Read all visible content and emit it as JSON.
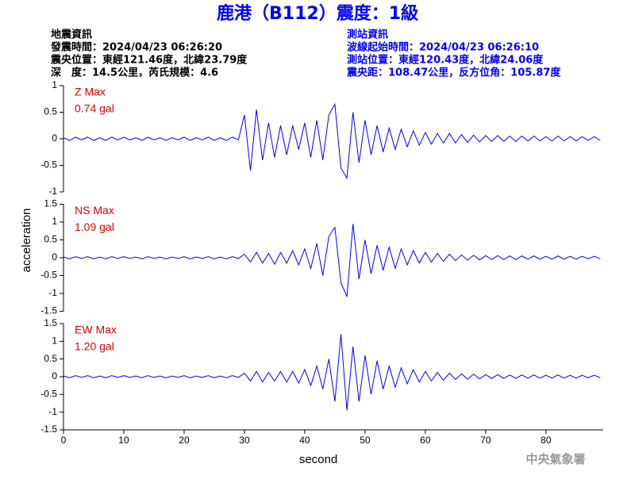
{
  "header": {
    "title": "鹿港（B112）震度：1級",
    "left": [
      "地震資訊",
      "發震時間：2024/04/23 06:26:20",
      "震央位置：東經121.46度，北緯23.79度",
      "深　度：14.5公里，芮氏規模：4.6"
    ],
    "right": [
      "測站資訊",
      "波線起始時間：2024/04/23 06:26:10",
      "測站位置：東經120.43度，北緯24.06度",
      "震央距：108.47公里，反方位角：105.87度"
    ]
  },
  "y_label": "acceleration",
  "x_label": "second",
  "footer": "中央氣象署",
  "chart_data": [
    {
      "type": "line",
      "annotations": [
        "Z Max",
        "0.74 gal"
      ],
      "x": [
        0,
        1,
        2,
        3,
        4,
        5,
        6,
        7,
        8,
        9,
        10,
        11,
        12,
        13,
        14,
        15,
        16,
        17,
        18,
        19,
        20,
        21,
        22,
        23,
        24,
        25,
        26,
        27,
        28,
        29,
        30,
        31,
        32,
        33,
        34,
        35,
        36,
        37,
        38,
        39,
        40,
        41,
        42,
        43,
        44,
        45,
        46,
        47,
        48,
        49,
        50,
        51,
        52,
        53,
        54,
        55,
        56,
        57,
        58,
        59,
        60,
        61,
        62,
        63,
        64,
        65,
        66,
        67,
        68,
        69,
        70,
        71,
        72,
        73,
        74,
        75,
        76,
        77,
        78,
        79,
        80,
        81,
        82,
        83,
        84,
        85,
        86,
        87,
        88,
        89
      ],
      "series": [
        {
          "color": "#0000ff",
          "values": [
            0.02,
            -0.03,
            0.03,
            -0.02,
            0.03,
            -0.03,
            0.02,
            -0.03,
            0.03,
            -0.02,
            0.03,
            -0.02,
            0.02,
            -0.03,
            0.03,
            -0.02,
            0.02,
            -0.03,
            0.02,
            -0.02,
            0.03,
            -0.03,
            0.02,
            -0.02,
            0.03,
            -0.03,
            0.02,
            -0.03,
            0.03,
            -0.02,
            0.45,
            -0.6,
            0.55,
            -0.4,
            0.3,
            -0.35,
            0.25,
            -0.3,
            0.25,
            -0.2,
            0.3,
            -0.35,
            0.35,
            -0.4,
            0.45,
            0.65,
            -0.55,
            -0.74,
            0.5,
            -0.45,
            0.35,
            -0.3,
            0.25,
            -0.25,
            0.2,
            -0.2,
            0.18,
            -0.15,
            0.15,
            -0.12,
            0.12,
            -0.1,
            0.1,
            -0.08,
            0.1,
            -0.08,
            0.08,
            -0.07,
            0.07,
            -0.06,
            0.06,
            -0.05,
            0.06,
            -0.05,
            0.05,
            -0.05,
            0.05,
            -0.04,
            0.05,
            -0.04,
            0.04,
            -0.04,
            0.05,
            -0.04,
            0.04,
            -0.04,
            0.04,
            -0.03,
            0.04,
            -0.03
          ]
        }
      ],
      "xlim": [
        0,
        89.5
      ],
      "ylim": [
        -1,
        1
      ],
      "yticks": [
        -1,
        -0.5,
        0,
        0.5,
        1
      ]
    },
    {
      "type": "line",
      "annotations": [
        "NS Max",
        "1.09 gal"
      ],
      "x": [
        0,
        1,
        2,
        3,
        4,
        5,
        6,
        7,
        8,
        9,
        10,
        11,
        12,
        13,
        14,
        15,
        16,
        17,
        18,
        19,
        20,
        21,
        22,
        23,
        24,
        25,
        26,
        27,
        28,
        29,
        30,
        31,
        32,
        33,
        34,
        35,
        36,
        37,
        38,
        39,
        40,
        41,
        42,
        43,
        44,
        45,
        46,
        47,
        48,
        49,
        50,
        51,
        52,
        53,
        54,
        55,
        56,
        57,
        58,
        59,
        60,
        61,
        62,
        63,
        64,
        65,
        66,
        67,
        68,
        69,
        70,
        71,
        72,
        73,
        74,
        75,
        76,
        77,
        78,
        79,
        80,
        81,
        82,
        83,
        84,
        85,
        86,
        87,
        88,
        89
      ],
      "series": [
        {
          "color": "#0000ff",
          "values": [
            0.02,
            -0.03,
            0.03,
            -0.02,
            0.03,
            -0.03,
            0.02,
            -0.03,
            0.03,
            -0.02,
            0.03,
            -0.02,
            0.02,
            -0.03,
            0.03,
            -0.02,
            0.02,
            -0.03,
            0.02,
            -0.02,
            0.03,
            -0.03,
            0.02,
            -0.02,
            0.03,
            -0.03,
            0.02,
            -0.03,
            0.03,
            -0.02,
            0.1,
            -0.12,
            0.15,
            -0.15,
            0.12,
            -0.18,
            0.15,
            -0.15,
            0.2,
            -0.2,
            0.25,
            -0.3,
            0.4,
            -0.5,
            0.6,
            0.85,
            -0.7,
            -1.09,
            0.95,
            -0.6,
            0.5,
            -0.45,
            0.35,
            -0.35,
            0.3,
            -0.3,
            0.25,
            -0.2,
            0.2,
            -0.15,
            0.15,
            -0.12,
            0.12,
            -0.1,
            0.1,
            -0.08,
            0.08,
            -0.07,
            0.07,
            -0.06,
            0.06,
            -0.05,
            0.06,
            -0.05,
            0.05,
            -0.05,
            0.05,
            -0.04,
            0.05,
            -0.04,
            0.04,
            -0.04,
            0.05,
            -0.04,
            0.04,
            -0.04,
            0.04,
            -0.03,
            0.04,
            -0.03
          ]
        }
      ],
      "xlim": [
        0,
        89.5
      ],
      "ylim": [
        -1.5,
        1.5
      ],
      "yticks": [
        -1.5,
        -1,
        -0.5,
        0,
        0.5,
        1,
        1.5
      ]
    },
    {
      "type": "line",
      "annotations": [
        "EW Max",
        "1.20 gal"
      ],
      "x": [
        0,
        1,
        2,
        3,
        4,
        5,
        6,
        7,
        8,
        9,
        10,
        11,
        12,
        13,
        14,
        15,
        16,
        17,
        18,
        19,
        20,
        21,
        22,
        23,
        24,
        25,
        26,
        27,
        28,
        29,
        30,
        31,
        32,
        33,
        34,
        35,
        36,
        37,
        38,
        39,
        40,
        41,
        42,
        43,
        44,
        45,
        46,
        47,
        48,
        49,
        50,
        51,
        52,
        53,
        54,
        55,
        56,
        57,
        58,
        59,
        60,
        61,
        62,
        63,
        64,
        65,
        66,
        67,
        68,
        69,
        70,
        71,
        72,
        73,
        74,
        75,
        76,
        77,
        78,
        79,
        80,
        81,
        82,
        83,
        84,
        85,
        86,
        87,
        88,
        89
      ],
      "series": [
        {
          "color": "#0000ff",
          "values": [
            0.02,
            -0.03,
            0.03,
            -0.02,
            0.03,
            -0.03,
            0.02,
            -0.03,
            0.03,
            -0.02,
            0.03,
            -0.02,
            0.02,
            -0.03,
            0.03,
            -0.02,
            0.02,
            -0.03,
            0.02,
            -0.02,
            0.03,
            -0.03,
            0.02,
            -0.02,
            0.03,
            -0.03,
            0.02,
            -0.03,
            0.03,
            -0.02,
            0.1,
            -0.12,
            0.15,
            -0.15,
            0.12,
            -0.12,
            0.15,
            -0.15,
            0.15,
            -0.18,
            0.2,
            -0.25,
            0.3,
            -0.35,
            0.5,
            -0.7,
            1.2,
            -0.95,
            0.85,
            -0.7,
            0.6,
            -0.5,
            0.45,
            -0.35,
            0.3,
            -0.3,
            0.25,
            -0.2,
            0.2,
            -0.15,
            0.15,
            -0.12,
            0.12,
            -0.1,
            0.1,
            -0.08,
            0.08,
            -0.07,
            0.07,
            -0.06,
            0.06,
            -0.05,
            0.06,
            -0.05,
            0.05,
            -0.05,
            0.05,
            -0.04,
            0.05,
            -0.04,
            0.04,
            -0.04,
            0.05,
            -0.04,
            0.04,
            -0.04,
            0.04,
            -0.03,
            0.04,
            -0.03
          ]
        }
      ],
      "xlim": [
        0,
        89.5
      ],
      "ylim": [
        -1.5,
        1.5
      ],
      "yticks": [
        -1.5,
        -1,
        -0.5,
        0,
        0.5,
        1,
        1.5
      ],
      "xticks": [
        0,
        10,
        20,
        30,
        40,
        50,
        60,
        70,
        80
      ]
    }
  ]
}
